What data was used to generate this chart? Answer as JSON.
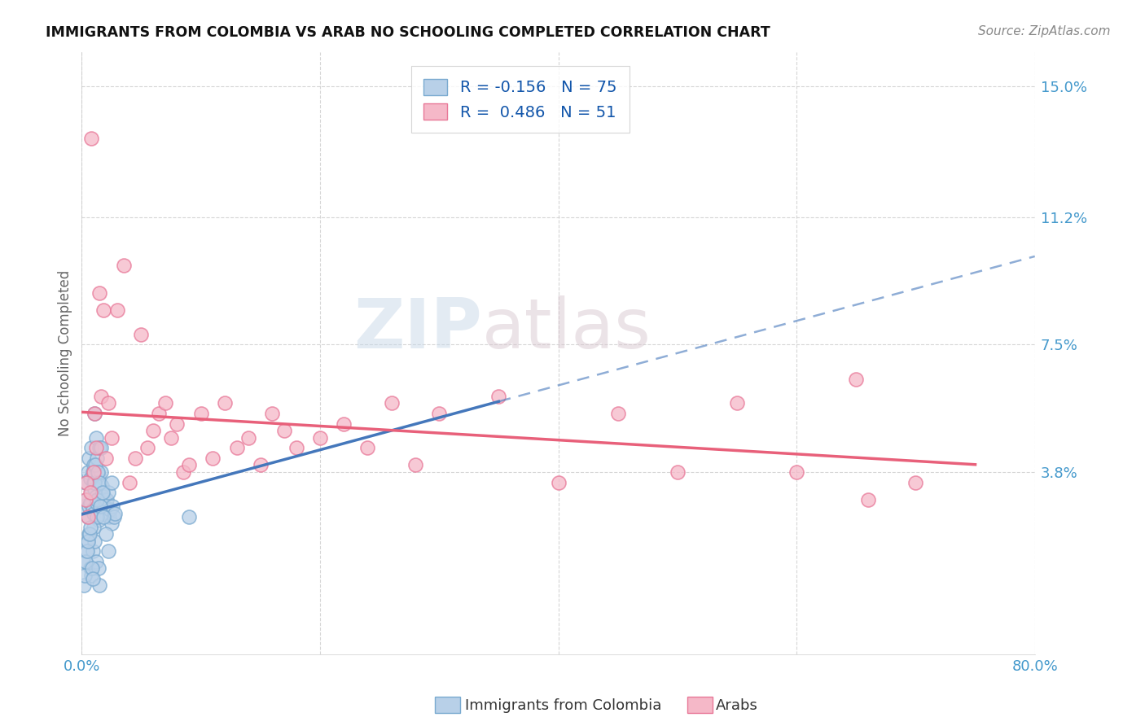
{
  "title": "IMMIGRANTS FROM COLOMBIA VS ARAB NO SCHOOLING COMPLETED CORRELATION CHART",
  "source": "Source: ZipAtlas.com",
  "ylabel": "No Schooling Completed",
  "right_yticks": [
    15.0,
    11.2,
    7.5,
    3.8
  ],
  "right_ytick_labels": [
    "15.0%",
    "11.2%",
    "7.5%",
    "3.8%"
  ],
  "legend_1_label": "Immigrants from Colombia",
  "legend_2_label": "Arabs",
  "R1": -0.156,
  "N1": 75,
  "R2": 0.486,
  "N2": 51,
  "colombia_color": "#b8d0e8",
  "arab_color": "#f5b8c8",
  "colombia_edge": "#7aaad0",
  "arab_edge": "#e87898",
  "colombia_line_color": "#4477bb",
  "arab_line_color": "#e8607a",
  "watermark_zip": "ZIP",
  "watermark_atlas": "atlas",
  "xlim": [
    0,
    80
  ],
  "ylim": [
    -1.5,
    16
  ],
  "colombia_scatter_x": [
    0.2,
    0.3,
    0.4,
    0.5,
    0.5,
    0.6,
    0.6,
    0.7,
    0.7,
    0.8,
    0.8,
    0.9,
    0.9,
    1.0,
    1.0,
    1.0,
    1.1,
    1.1,
    1.2,
    1.2,
    1.3,
    1.3,
    1.4,
    1.4,
    1.5,
    1.5,
    1.6,
    1.6,
    1.7,
    1.8,
    1.9,
    2.0,
    2.1,
    2.2,
    2.3,
    2.4,
    2.5,
    2.6,
    2.7,
    2.8,
    0.3,
    0.4,
    0.5,
    0.6,
    0.7,
    0.8,
    0.9,
    1.0,
    1.1,
    1.2,
    1.3,
    1.4,
    1.5,
    0.2,
    0.25,
    0.35,
    0.45,
    0.55,
    0.65,
    0.75,
    0.85,
    0.95,
    1.05,
    1.15,
    1.25,
    1.35,
    1.45,
    1.55,
    1.65,
    1.75,
    1.85,
    2.0,
    2.2,
    2.5,
    9.0
  ],
  "colombia_scatter_y": [
    2.8,
    3.5,
    3.0,
    3.8,
    2.5,
    4.2,
    2.8,
    3.6,
    2.9,
    4.5,
    3.2,
    3.8,
    2.7,
    4.0,
    3.5,
    2.6,
    5.5,
    3.3,
    4.8,
    3.1,
    4.2,
    2.9,
    3.7,
    2.4,
    4.5,
    3.0,
    3.8,
    2.6,
    3.4,
    3.1,
    2.8,
    2.9,
    3.0,
    3.2,
    2.5,
    2.7,
    2.3,
    2.8,
    2.5,
    2.6,
    1.2,
    1.5,
    1.8,
    2.0,
    1.0,
    0.8,
    1.5,
    2.2,
    1.8,
    1.2,
    2.5,
    1.0,
    0.5,
    0.5,
    0.8,
    1.2,
    1.5,
    1.8,
    2.0,
    2.2,
    1.0,
    0.7,
    3.5,
    4.0,
    3.0,
    3.8,
    3.5,
    2.8,
    4.5,
    3.2,
    2.5,
    2.0,
    1.5,
    3.5,
    2.5
  ],
  "arab_scatter_x": [
    0.3,
    0.5,
    0.8,
    1.0,
    1.2,
    1.5,
    1.8,
    2.0,
    2.5,
    3.0,
    3.5,
    4.0,
    4.5,
    5.0,
    5.5,
    6.0,
    6.5,
    7.0,
    7.5,
    8.0,
    8.5,
    9.0,
    10.0,
    11.0,
    12.0,
    13.0,
    14.0,
    15.0,
    16.0,
    17.0,
    18.0,
    20.0,
    22.0,
    24.0,
    26.0,
    28.0,
    30.0,
    35.0,
    40.0,
    45.0,
    50.0,
    55.0,
    60.0,
    65.0,
    70.0,
    0.4,
    0.7,
    1.1,
    1.6,
    2.2,
    66.0
  ],
  "arab_scatter_y": [
    3.0,
    2.5,
    13.5,
    3.8,
    4.5,
    9.0,
    8.5,
    4.2,
    4.8,
    8.5,
    9.8,
    3.5,
    4.2,
    7.8,
    4.5,
    5.0,
    5.5,
    5.8,
    4.8,
    5.2,
    3.8,
    4.0,
    5.5,
    4.2,
    5.8,
    4.5,
    4.8,
    4.0,
    5.5,
    5.0,
    4.5,
    4.8,
    5.2,
    4.5,
    5.8,
    4.0,
    5.5,
    6.0,
    3.5,
    5.5,
    3.8,
    5.8,
    3.8,
    6.5,
    3.5,
    3.5,
    3.2,
    5.5,
    6.0,
    5.8,
    3.0
  ]
}
